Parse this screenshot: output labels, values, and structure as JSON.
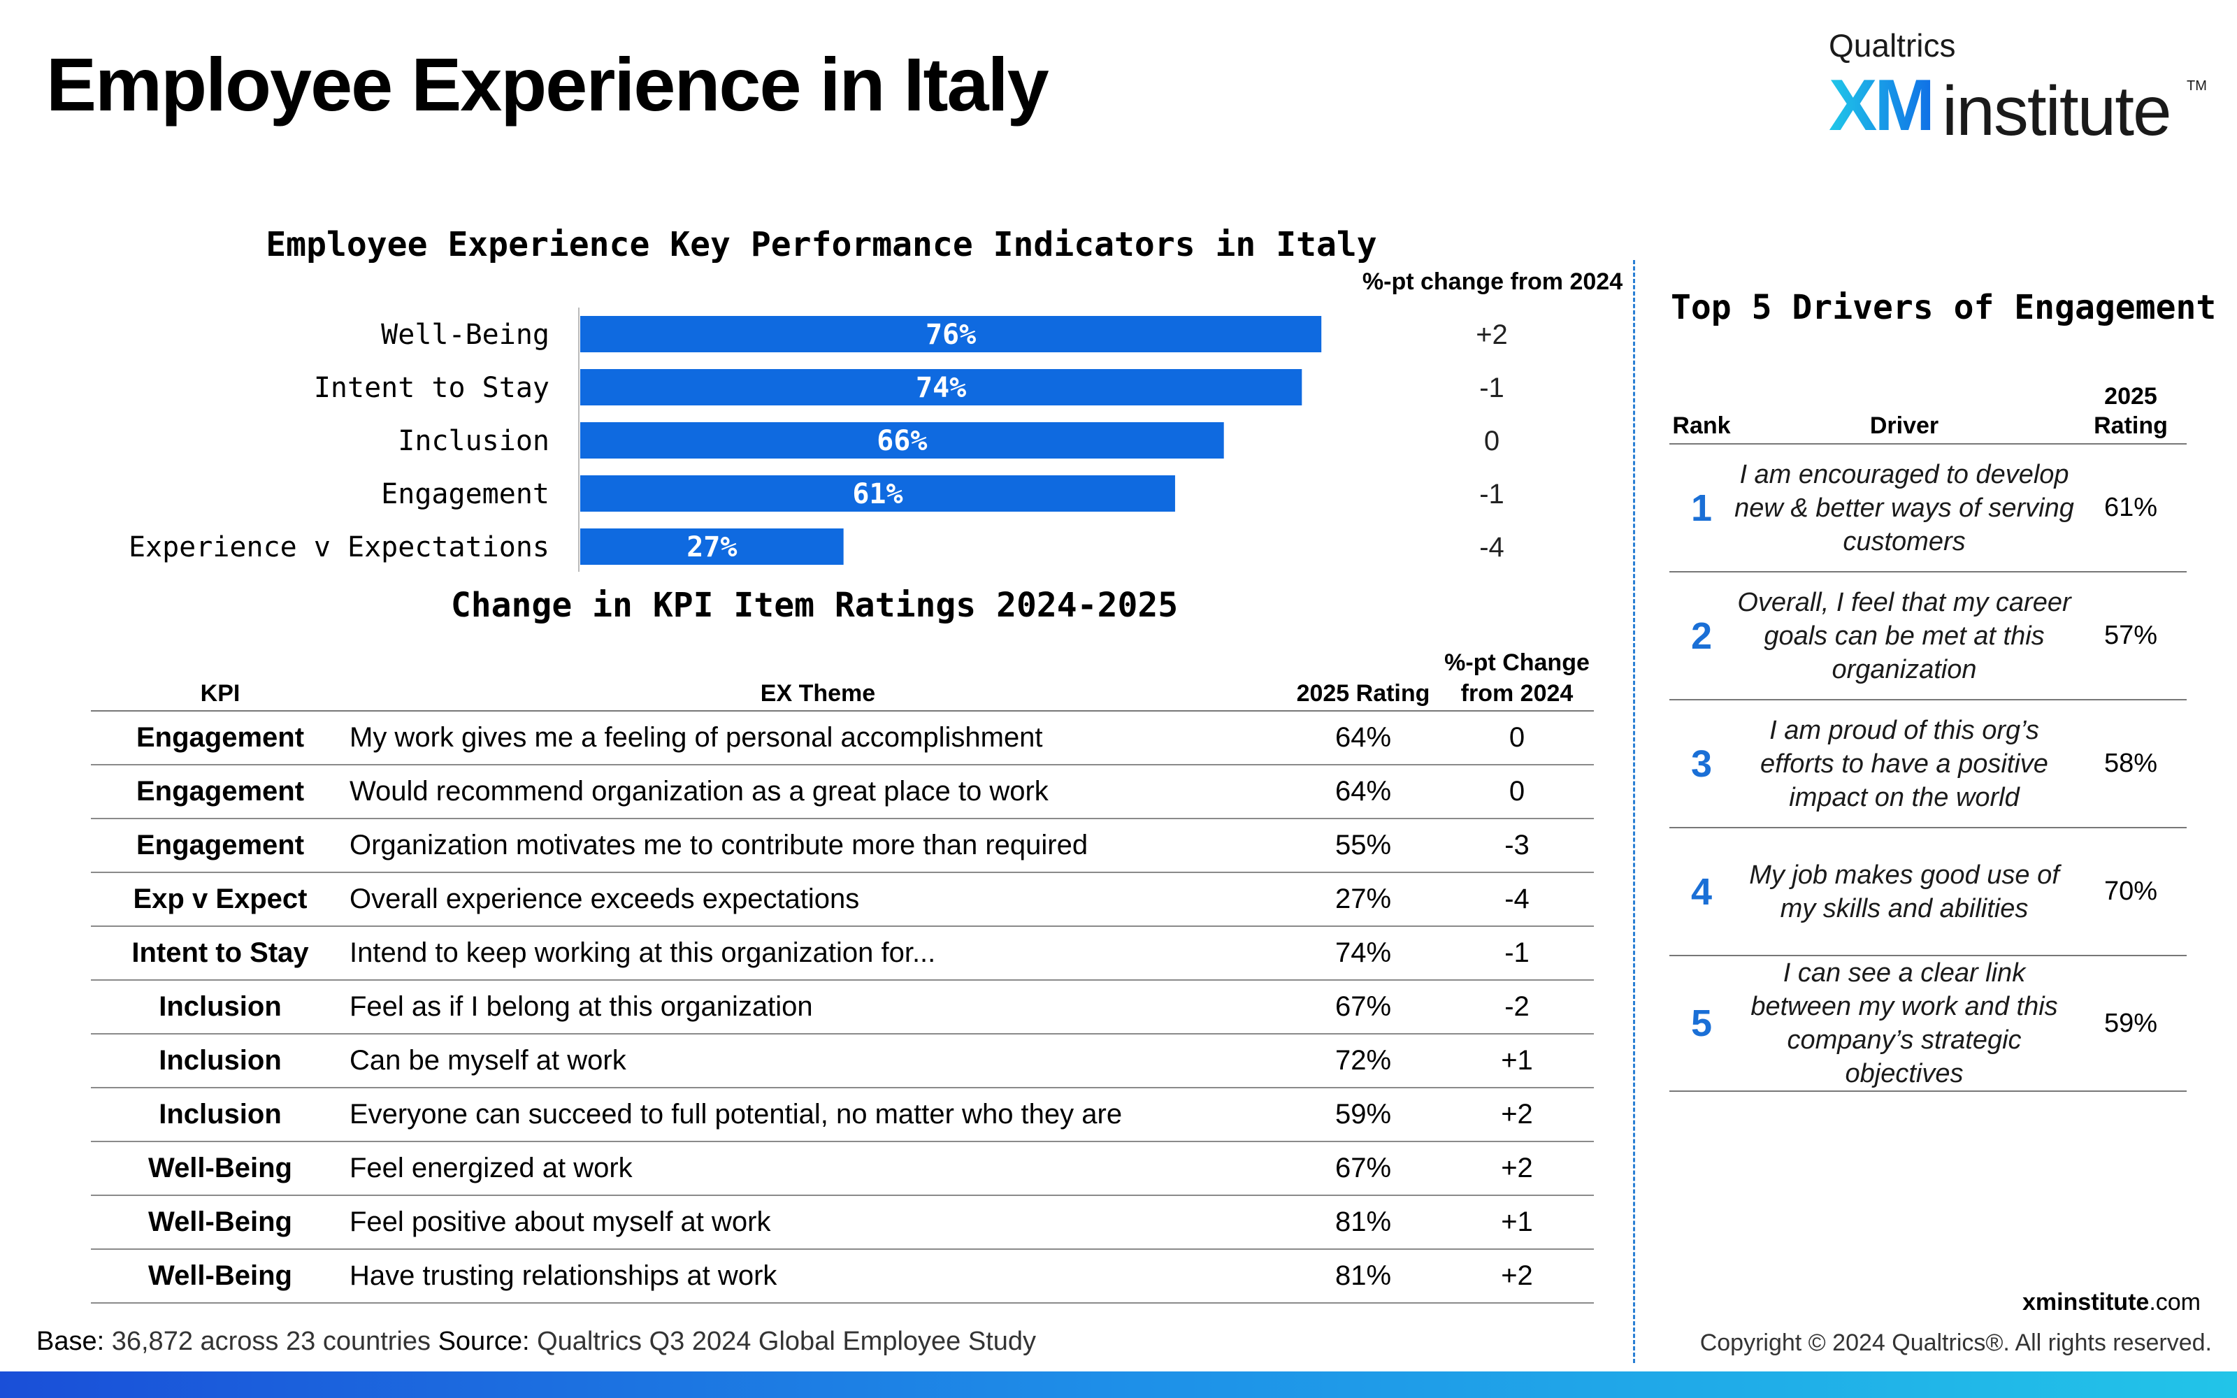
{
  "page": {
    "title": "Employee Experience in Italy",
    "logo": {
      "top": "Qualtrics",
      "xm": "XM",
      "institute": "institute",
      "tm": "TM"
    }
  },
  "chart_data": {
    "type": "bar",
    "orientation": "horizontal",
    "title": "Employee Experience Key Performance Indicators in Italy",
    "categories": [
      "Well-Being",
      "Intent to Stay",
      "Inclusion",
      "Engagement",
      "Experience v Expectations"
    ],
    "values": [
      76,
      74,
      66,
      61,
      27
    ],
    "value_labels": [
      "76%",
      "74%",
      "66%",
      "61%",
      "27%"
    ],
    "change_header": "%-pt change from 2024",
    "changes": [
      "+2",
      "-1",
      "0",
      "-1",
      "-4"
    ],
    "xlim": [
      0,
      100
    ],
    "bar_color": "#0f6ae0"
  },
  "items_table": {
    "title": "Change in KPI Item Ratings 2024-2025",
    "headers": {
      "kpi": "KPI",
      "theme": "EX Theme",
      "rating": "2025 Rating",
      "change": "%-pt Change from 2024"
    },
    "rows": [
      {
        "kpi": "Engagement",
        "theme": "My work gives me a feeling of personal accomplishment",
        "rating": "64%",
        "change": "0"
      },
      {
        "kpi": "Engagement",
        "theme": "Would recommend organization as a great place to work",
        "rating": "64%",
        "change": "0"
      },
      {
        "kpi": "Engagement",
        "theme": "Organization motivates me to contribute more than required",
        "rating": "55%",
        "change": "-3"
      },
      {
        "kpi": "Exp v Expect",
        "theme": "Overall experience exceeds expectations",
        "rating": "27%",
        "change": "-4"
      },
      {
        "kpi": "Intent to Stay",
        "theme": "Intend to keep working at this organization for...",
        "rating": "74%",
        "change": "-1"
      },
      {
        "kpi": "Inclusion",
        "theme": "Feel as if I belong at this organization",
        "rating": "67%",
        "change": "-2"
      },
      {
        "kpi": "Inclusion",
        "theme": "Can be myself at work",
        "rating": "72%",
        "change": "+1"
      },
      {
        "kpi": "Inclusion",
        "theme": "Everyone can succeed to full potential, no matter who they are",
        "rating": "59%",
        "change": "+2"
      },
      {
        "kpi": "Well-Being",
        "theme": "Feel energized at work",
        "rating": "67%",
        "change": "+2"
      },
      {
        "kpi": "Well-Being",
        "theme": "Feel positive about myself at work",
        "rating": "81%",
        "change": "+1"
      },
      {
        "kpi": "Well-Being",
        "theme": "Have trusting relationships at work",
        "rating": "81%",
        "change": "+2"
      }
    ]
  },
  "drivers": {
    "title": "Top 5 Drivers of Engagement",
    "headers": {
      "rank": "Rank",
      "driver": "Driver",
      "rating": "2025 Rating"
    },
    "rows": [
      {
        "rank": "1",
        "driver": "I am encouraged to develop new & better ways of serving customers",
        "rating": "61%"
      },
      {
        "rank": "2",
        "driver": "Overall, I feel that my career goals can be met at this organization",
        "rating": "57%"
      },
      {
        "rank": "3",
        "driver": "I am proud of this org’s efforts to have a positive impact on the world",
        "rating": "58%"
      },
      {
        "rank": "4",
        "driver": "My job makes good use of my skills and abilities",
        "rating": "70%"
      },
      {
        "rank": "5",
        "driver": "I can see a clear link between my work and this company’s strategic objectives",
        "rating": "59%"
      }
    ]
  },
  "footer": {
    "base_label": "Base:",
    "base_value": " 36,872 across 23 countries ",
    "source_label": "Source:",
    "source_value": " Qualtrics Q3 2024 Global Employee Study",
    "site_bold": "xminstitute",
    "site_rest": ".com",
    "copyright": "Copyright © 2024 Qualtrics®. All rights reserved."
  },
  "colors": {
    "accent": "#0f6ae0",
    "rank": "#1a6fd6"
  }
}
